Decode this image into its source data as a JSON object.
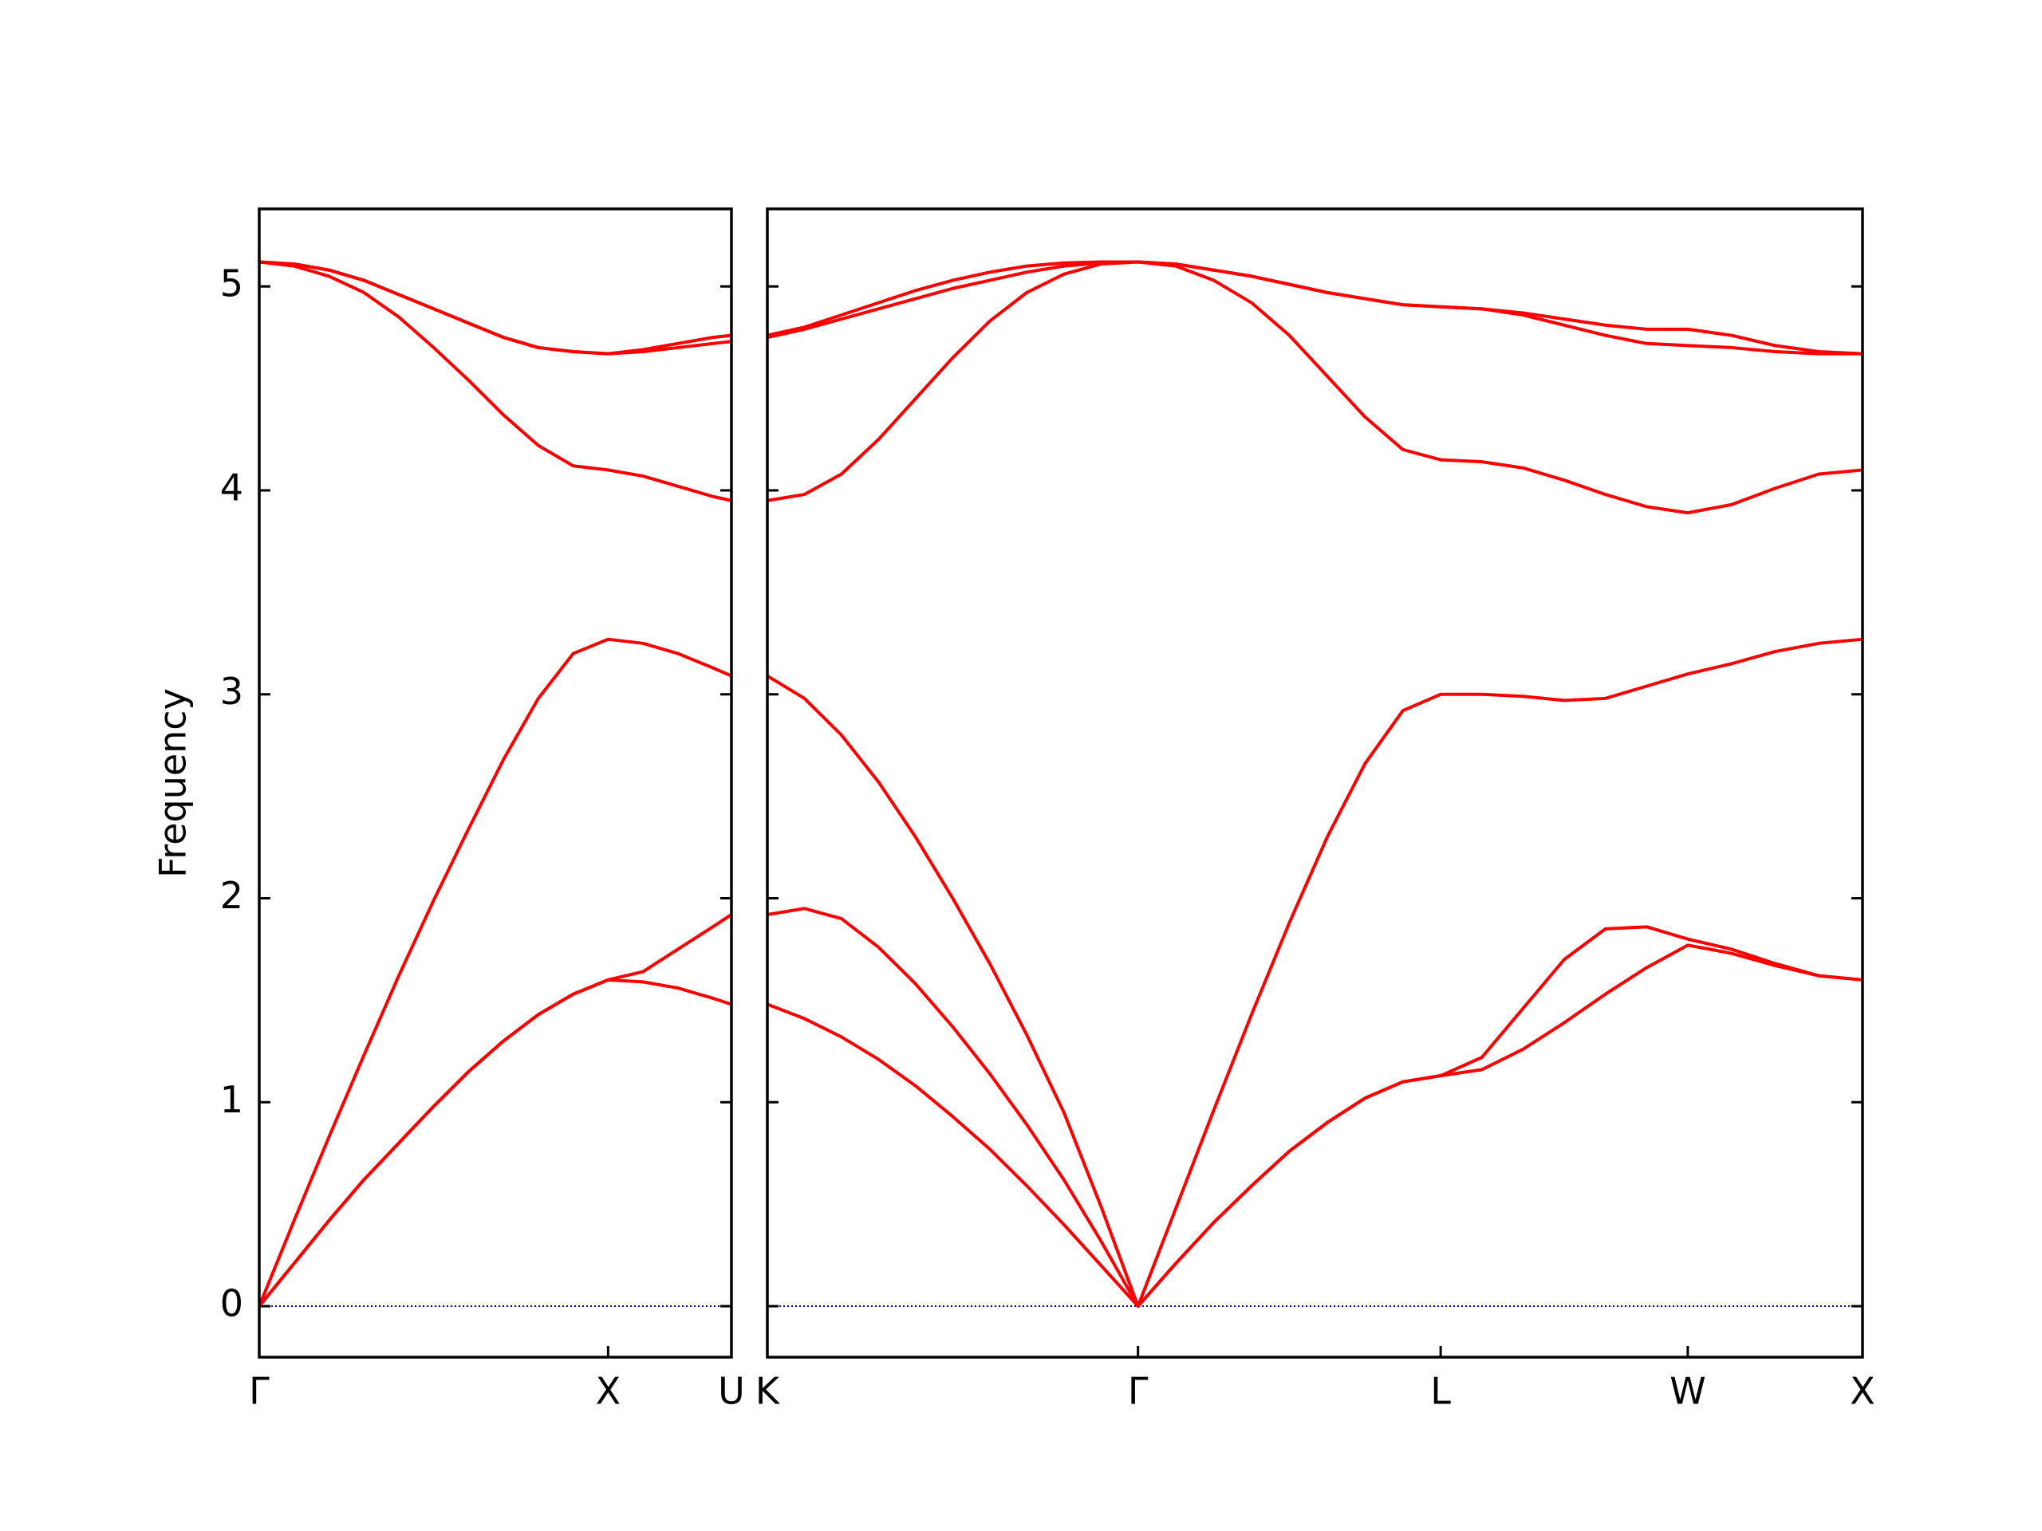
{
  "chart_data": [
    {
      "type": "line",
      "y_label": "Frequency",
      "color": "#ff0000",
      "grid": false,
      "reference_line": {
        "y": 0,
        "color": "#0000cc",
        "style": "dotted"
      },
      "xlim": [
        0,
        1.3536
      ],
      "ylim": [
        -0.25,
        5.38
      ],
      "xticks": [
        {
          "value": 0,
          "label": "Γ"
        },
        {
          "value": 1,
          "label": "X"
        },
        {
          "value": 1.3536,
          "label": "U"
        }
      ],
      "yticks": [
        0,
        1,
        2,
        3,
        4,
        5
      ],
      "x": [
        0,
        0.1,
        0.2,
        0.3,
        0.4,
        0.5,
        0.6,
        0.7,
        0.8,
        0.9,
        1.0,
        1.1,
        1.2,
        1.3,
        1.3536
      ],
      "series": [
        {
          "color": "#ff0000",
          "values": [
            0,
            0.21,
            0.42,
            0.62,
            0.8,
            0.98,
            1.15,
            1.3,
            1.43,
            1.53,
            1.6,
            1.59,
            1.56,
            1.51,
            1.48
          ]
        },
        {
          "color": "#ff0000",
          "values": [
            0,
            0.21,
            0.42,
            0.62,
            0.8,
            0.98,
            1.15,
            1.3,
            1.43,
            1.53,
            1.6,
            1.64,
            1.75,
            1.86,
            1.92
          ]
        },
        {
          "color": "#ff0000",
          "values": [
            0,
            0.42,
            0.83,
            1.23,
            1.62,
            1.99,
            2.34,
            2.68,
            2.98,
            3.2,
            3.27,
            3.25,
            3.2,
            3.13,
            3.09
          ]
        },
        {
          "color": "#ff0000",
          "values": [
            5.12,
            5.1,
            5.05,
            4.97,
            4.85,
            4.7,
            4.54,
            4.37,
            4.22,
            4.12,
            4.1,
            4.07,
            4.02,
            3.97,
            3.95
          ]
        },
        {
          "color": "#ff0000",
          "values": [
            5.12,
            5.11,
            5.08,
            5.03,
            4.96,
            4.89,
            4.82,
            4.75,
            4.7,
            4.68,
            4.67,
            4.68,
            4.7,
            4.72,
            4.73
          ]
        },
        {
          "color": "#ff0000",
          "values": [
            5.12,
            5.11,
            5.08,
            5.03,
            4.96,
            4.89,
            4.82,
            4.75,
            4.7,
            4.68,
            4.67,
            4.69,
            4.72,
            4.75,
            4.76
          ]
        }
      ]
    },
    {
      "type": "line",
      "color": "#ff0000",
      "grid": false,
      "reference_line": {
        "y": 0,
        "color": "#0000cc",
        "style": "dotted"
      },
      "xlim": [
        1.3536,
        4.4873
      ],
      "ylim": [
        -0.25,
        5.38
      ],
      "xticks": [
        {
          "value": 1.3536,
          "label": "K"
        },
        {
          "value": 2.4142,
          "label": "Γ"
        },
        {
          "value": 3.2802,
          "label": "L"
        },
        {
          "value": 3.9873,
          "label": "W"
        },
        {
          "value": 4.4873,
          "label": "X"
        }
      ],
      "yticks": [
        0,
        1,
        2,
        3,
        4,
        5
      ],
      "x": [
        1.3536,
        1.4597,
        1.5657,
        1.6718,
        1.7778,
        1.8839,
        1.99,
        2.096,
        2.2021,
        2.3081,
        2.4142,
        2.5225,
        2.6307,
        2.739,
        2.8472,
        2.9555,
        3.0637,
        3.172,
        3.2802,
        3.3981,
        3.5159,
        3.6338,
        3.7516,
        3.8695,
        3.9873,
        4.1123,
        4.2373,
        4.3623,
        4.4873
      ],
      "series": [
        {
          "color": "#ff0000",
          "values": [
            1.48,
            1.41,
            1.32,
            1.21,
            1.08,
            0.93,
            0.77,
            0.59,
            0.4,
            0.2,
            0,
            0.21,
            0.41,
            0.59,
            0.76,
            0.9,
            1.02,
            1.1,
            1.13,
            1.16,
            1.26,
            1.39,
            1.53,
            1.66,
            1.77,
            1.73,
            1.67,
            1.62,
            1.6
          ]
        },
        {
          "color": "#ff0000",
          "values": [
            1.92,
            1.95,
            1.9,
            1.76,
            1.58,
            1.37,
            1.14,
            0.89,
            0.62,
            0.32,
            0,
            0.21,
            0.41,
            0.59,
            0.76,
            0.9,
            1.02,
            1.1,
            1.13,
            1.22,
            1.46,
            1.7,
            1.85,
            1.86,
            1.8,
            1.75,
            1.68,
            1.62,
            1.6
          ]
        },
        {
          "color": "#ff0000",
          "values": [
            3.09,
            2.98,
            2.8,
            2.57,
            2.3,
            2.0,
            1.68,
            1.33,
            0.95,
            0.49,
            0,
            0.48,
            0.96,
            1.43,
            1.88,
            2.3,
            2.66,
            2.92,
            3.0,
            3.0,
            2.99,
            2.97,
            2.98,
            3.04,
            3.1,
            3.15,
            3.21,
            3.25,
            3.27
          ]
        },
        {
          "color": "#ff0000",
          "values": [
            3.95,
            3.98,
            4.08,
            4.25,
            4.45,
            4.65,
            4.83,
            4.97,
            5.06,
            5.11,
            5.12,
            5.1,
            5.03,
            4.92,
            4.76,
            4.56,
            4.36,
            4.2,
            4.15,
            4.14,
            4.11,
            4.05,
            3.98,
            3.92,
            3.89,
            3.93,
            4.01,
            4.08,
            4.1
          ]
        },
        {
          "color": "#ff0000",
          "values": [
            4.75,
            4.79,
            4.84,
            4.89,
            4.94,
            4.99,
            5.03,
            5.07,
            5.1,
            5.115,
            5.12,
            5.11,
            5.08,
            5.05,
            5.01,
            4.97,
            4.94,
            4.91,
            4.9,
            4.89,
            4.86,
            4.81,
            4.76,
            4.72,
            4.71,
            4.7,
            4.68,
            4.67,
            4.67
          ]
        },
        {
          "color": "#ff0000",
          "values": [
            4.76,
            4.8,
            4.86,
            4.92,
            4.98,
            5.03,
            5.07,
            5.1,
            5.115,
            5.12,
            5.12,
            5.11,
            5.08,
            5.05,
            5.01,
            4.97,
            4.94,
            4.91,
            4.9,
            4.89,
            4.87,
            4.84,
            4.81,
            4.79,
            4.79,
            4.76,
            4.71,
            4.68,
            4.67
          ]
        }
      ]
    }
  ]
}
